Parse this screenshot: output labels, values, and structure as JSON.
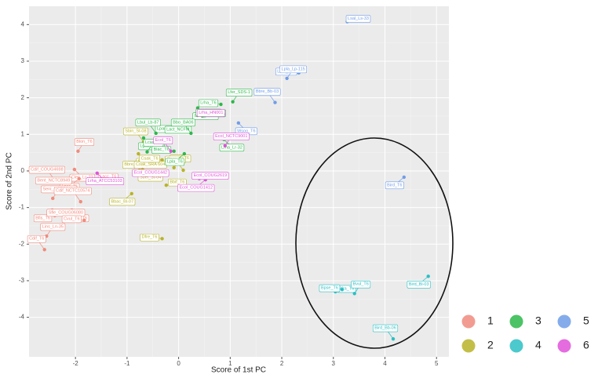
{
  "chart_data": {
    "type": "scatter",
    "x_label": "Score of 1st PC",
    "y_label": "Score of 2nd PC",
    "xlim": [
      -2.9,
      5.24
    ],
    "ylim": [
      -5.08,
      4.5
    ],
    "xticks": [
      -2,
      -1,
      0,
      1,
      2,
      3,
      4,
      5
    ],
    "yticks": [
      -4,
      -3,
      -2,
      -1,
      0,
      1,
      2,
      3,
      4
    ],
    "grid": true,
    "series": [
      {
        "name": "1",
        "color": "#f08b7e",
        "labels": [
          "Blon_T6",
          "Cdif_COUG4698",
          "Clec_Lc-23",
          "Lpar_T6",
          "Lacc_T6",
          "Bent_NCTC8949",
          "Seni_NCTC9404",
          "Cdif_NCTC10574",
          "Bmi_T6",
          "Bfis_T6",
          "Sfle_COUG06080",
          "Cvul_T6",
          "Lins_Ln-35",
          "Cdif_T6"
        ],
        "x": [
          -1.95,
          -2.4,
          -2.02,
          -1.93,
          -1.58,
          -2.18,
          -2.44,
          -1.9,
          -2.07,
          -2.45,
          -2.4,
          -1.83,
          -2.56,
          -2.6
        ],
        "values": [
          0.54,
          -0.26,
          0.04,
          -0.21,
          -0.24,
          -0.3,
          -0.75,
          -0.84,
          -1.07,
          -1.07,
          -1.22,
          -1.35,
          -1.78,
          -2.15
        ]
      },
      {
        "name": "2",
        "color": "#b8b327",
        "labels": [
          "Sbin_St-08",
          "Bbre_T6",
          "Bbre_M16V",
          "Csak_SRA 604",
          "Csak_T6",
          "Dado_T6",
          "Oper_T6",
          "Sbel_St-04",
          "Bbac_Bl-07",
          "Bbif_T6",
          "Dfre_T6"
        ],
        "x": [
          -0.68,
          -0.78,
          -0.65,
          -0.76,
          -0.32,
          -0.09,
          0.09,
          -0.7,
          -0.91,
          -0.24,
          -0.32
        ],
        "values": [
          0.79,
          0.47,
          0.39,
          0.09,
          0.3,
          0.09,
          0.02,
          0.04,
          -0.62,
          -0.39,
          -1.85
        ]
      },
      {
        "name": "3",
        "color": "#2db84a",
        "labels": [
          "Lsac_Ls-14",
          "Lpar_Lpo-37",
          "Lcas_Lo-11",
          "Lrha_T6",
          "Lfer_SDS-1",
          "Lbul_Lb-87",
          "Lgas_Lg-34",
          "Lact_NCFM",
          "Sthe_St-21",
          "Blac_T6",
          "Lcas_T6",
          "Bbo_BA06",
          "Lrha_Lr-32",
          "Lpla_T6"
        ],
        "x": [
          0.37,
          0,
          0.37,
          0.82,
          1.05,
          -0.44,
          -0.68,
          0.17,
          0.46,
          -0.09,
          -0.61,
          0.24,
          0.88,
          0.11
        ],
        "values": [
          1.72,
          1.37,
          1.52,
          1.82,
          1.89,
          1.03,
          0.9,
          1.35,
          1.5,
          0.54,
          0.52,
          1.03,
          0.86,
          0.47
        ]
      },
      {
        "name": "4",
        "color": "#2bbfc4",
        "labels": [
          "Bird_Bl-03",
          "Bfra_T6",
          "Bpse_T6",
          "Bvul_T6",
          "Bird_Bb-06"
        ],
        "x": [
          4.84,
          3.04,
          3.17,
          3.41,
          4.16
        ],
        "values": [
          -2.88,
          -3.3,
          -3.24,
          -3.35,
          -4.59
        ]
      },
      {
        "name": "5",
        "color": "#6f9de8",
        "labels": [
          "Lsal_Ls-33",
          "Lmu_161",
          "Lpla_Lp-115",
          "Bbre_Bb-03",
          "Wsoo_T6",
          "Bird_T6"
        ],
        "x": [
          3.27,
          2.33,
          2.1,
          1.87,
          1.16,
          4.37
        ],
        "values": [
          4.08,
          2.68,
          2.53,
          1.87,
          1.31,
          -0.17
        ]
      },
      {
        "name": "6",
        "color": "#e052d9",
        "labels": [
          "Lrha_HN001",
          "Ecol_NCTC9001",
          "Ecol_T6",
          "Lrha_ATCC53103",
          "Ecol_COUG1412",
          "Ecol_COUG2619",
          "Ecol_COUG1442"
        ],
        "x": [
          0.87,
          0.9,
          -0.15,
          -1.58,
          0.52,
          0.4,
          -0.3
        ],
        "values": [
          1.55,
          0.69,
          0.54,
          -0.06,
          -0.24,
          -0.21,
          -0.09
        ]
      }
    ]
  }
}
